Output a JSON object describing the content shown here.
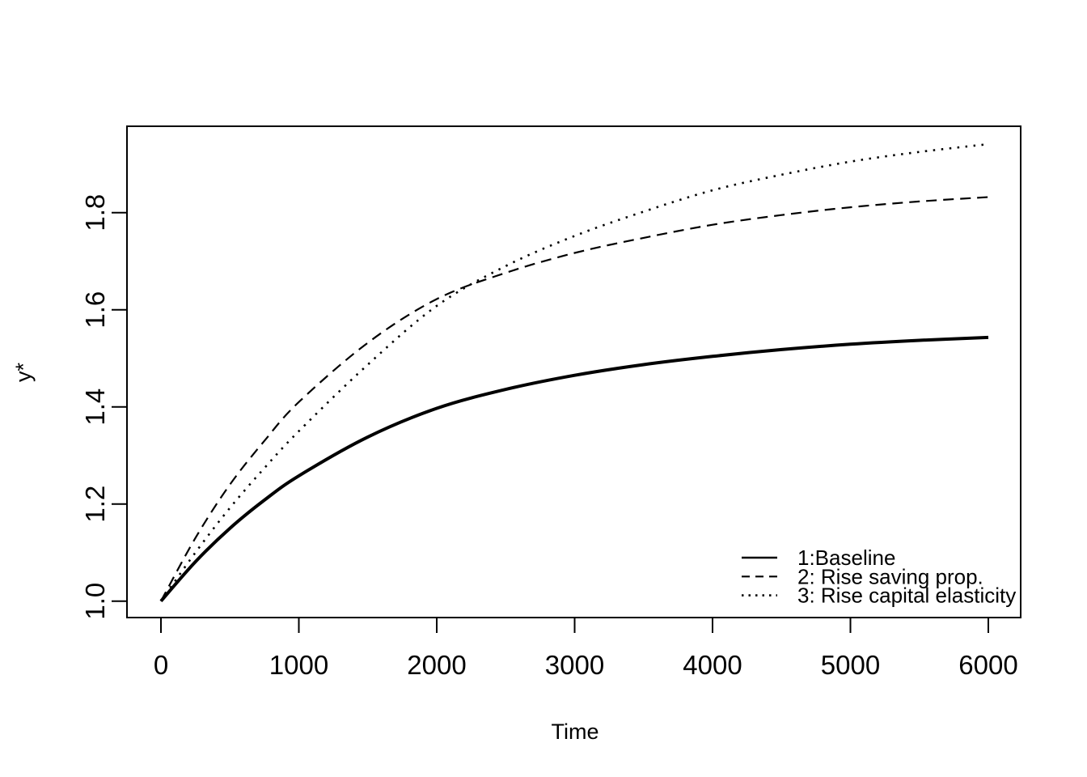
{
  "figure": {
    "background": "#ffffff",
    "foreground": "#000000"
  },
  "chart_data": {
    "type": "line",
    "title": "",
    "xlabel": "Time",
    "ylabel": "y*",
    "x_ticks": [
      0,
      1000,
      2000,
      3000,
      4000,
      5000,
      6000
    ],
    "y_ticks": [
      "1.0",
      "1.2",
      "1.4",
      "1.6",
      "1.8"
    ],
    "xlim": [
      -240,
      6240
    ],
    "ylim": [
      0.96,
      1.98
    ],
    "grid": false,
    "legend_position": "inside-bottom-right",
    "x": [
      0,
      250,
      500,
      750,
      1000,
      1500,
      2000,
      2500,
      3000,
      3500,
      4000,
      4500,
      5000,
      5500,
      6000
    ],
    "series": [
      {
        "name": "1:Baseline",
        "linetype": "solid",
        "values": [
          1.0,
          1.081,
          1.15,
          1.208,
          1.258,
          1.338,
          1.397,
          1.436,
          1.465,
          1.487,
          1.504,
          1.518,
          1.529,
          1.537,
          1.543
        ]
      },
      {
        "name": "2: Rise saving prop.",
        "linetype": "dashed",
        "values": [
          1.0,
          1.13,
          1.24,
          1.33,
          1.41,
          1.532,
          1.622,
          1.676,
          1.717,
          1.748,
          1.775,
          1.795,
          1.811,
          1.823,
          1.832
        ]
      },
      {
        "name": "3: Rise capital elasticity",
        "linetype": "dotted",
        "values": [
          1.0,
          1.1,
          1.192,
          1.274,
          1.35,
          1.487,
          1.608,
          1.69,
          1.752,
          1.802,
          1.846,
          1.878,
          1.905,
          1.925,
          1.941
        ]
      }
    ],
    "legend": {
      "items": [
        {
          "label": "1:Baseline",
          "linetype": "solid"
        },
        {
          "label": "2: Rise saving prop.",
          "linetype": "dashed"
        },
        {
          "label": "3: Rise capital elasticity",
          "linetype": "dotted"
        }
      ]
    }
  }
}
